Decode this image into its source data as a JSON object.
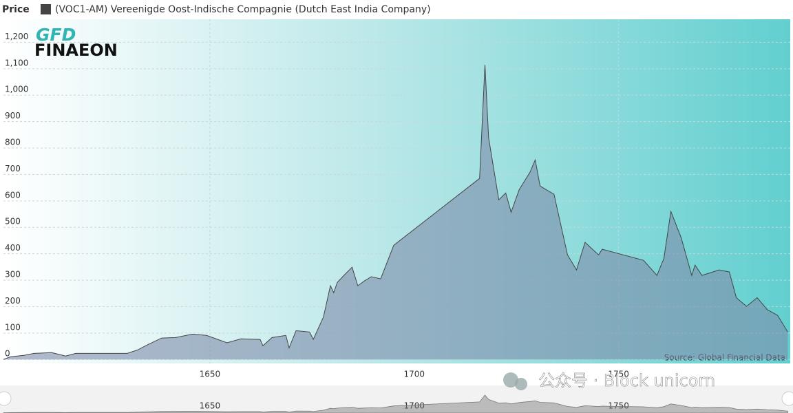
{
  "chart_data": {
    "type": "area",
    "y_axis_label": "Price",
    "logo": [
      "GFD",
      "FINAEON"
    ],
    "source": "Source: Global Financial Data",
    "watermark": "公众号 · Block unicorn",
    "x": [
      1599.5,
      1601.2,
      1604.6,
      1607,
      1611.3,
      1614.7,
      1617.2,
      1629.8,
      1632.3,
      1634.9,
      1638.2,
      1641.6,
      1645.8,
      1649.2,
      1654.2,
      1657.6,
      1662.3,
      1663,
      1665.2,
      1668.6,
      1669.4,
      1671.1,
      1674.4,
      1675.3,
      1677.8,
      1679.5,
      1680.3,
      1681.2,
      1682.8,
      1684.8,
      1686.2,
      1687.8,
      1689.5,
      1691.8,
      1695,
      1716,
      1717.3,
      1718.2,
      1720.7,
      1722.4,
      1723.7,
      1725.7,
      1728.3,
      1729.6,
      1730.8,
      1734.2,
      1737.5,
      1739.7,
      1741.8,
      1745.1,
      1746,
      1756.1,
      1759.4,
      1761.1,
      1762.8,
      1765.3,
      1767.9,
      1768.7,
      1770.4,
      1774.6,
      1777.1,
      1778.8,
      1781.3,
      1783.9,
      1786.4,
      1788.9,
      1791.4
    ],
    "series": [
      {
        "name": "(VOC1-AM) Vereenigde Oost-Indische Compagnie (Dutch East India Company)",
        "color": "#444444",
        "values": [
          0,
          10,
          16,
          23,
          26,
          13,
          23,
          23,
          36,
          57,
          81,
          83,
          96,
          91,
          63,
          78,
          76,
          52,
          83,
          91,
          44,
          109,
          104,
          76,
          161,
          279,
          253,
          292,
          318,
          349,
          279,
          297,
          313,
          305,
          432,
          685,
          1115,
          839,
          604,
          630,
          557,
          643,
          708,
          755,
          656,
          625,
          396,
          339,
          443,
          396,
          417,
          375,
          318,
          383,
          560,
          461,
          318,
          357,
          318,
          339,
          331,
          234,
          201,
          234,
          188,
          167,
          104
        ]
      }
    ],
    "xlim": [
      1599.5,
      1792
    ],
    "xticks": [
      1650,
      1700,
      1750
    ],
    "ylim": [
      -15,
      1287
    ],
    "yticks": [
      0,
      100,
      200,
      300,
      400,
      500,
      600,
      700,
      800,
      900,
      {
        "value": 1000,
        "label": "1,000"
      },
      {
        "value": 1100,
        "label": "1,100"
      },
      {
        "value": 1200,
        "label": "1,200"
      }
    ],
    "grid": true
  }
}
